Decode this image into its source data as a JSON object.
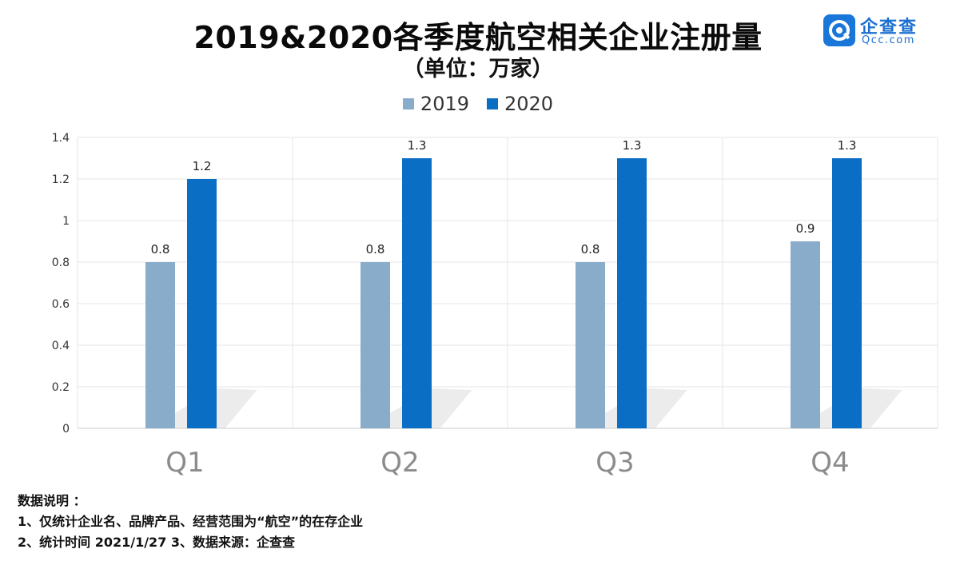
{
  "title": "2019&2020各季度航空相关企业注册量",
  "subtitle": "（单位：万家）",
  "logo": {
    "name_cn": "企查查",
    "name_en": "Qcc.com",
    "icon": "qcc-logo-icon",
    "color": "#1877d8"
  },
  "notes": {
    "heading": "数据说明 ：",
    "line1": "1、仅统计企业名、品牌产品、经营范围为“航空”的在存企业",
    "line2": "2、统计时间 2021/1/27   3、数据来源：企查查"
  },
  "chart_data": {
    "type": "bar",
    "title": "2019&2020各季度航空相关企业注册量",
    "subtitle": "（单位：万家）",
    "categories": [
      "Q1",
      "Q2",
      "Q3",
      "Q4"
    ],
    "series": [
      {
        "name": "2019",
        "values": [
          0.8,
          0.8,
          0.8,
          0.9
        ],
        "color": "#8aaccb"
      },
      {
        "name": "2020",
        "values": [
          1.2,
          1.3,
          1.3,
          1.3
        ],
        "color": "#0a6fc4"
      }
    ],
    "ylim": [
      0,
      1.4
    ],
    "yticks": [
      "0",
      "0.2",
      "0.4",
      "0.6",
      "0.8",
      "1",
      "1.2",
      "1.4"
    ],
    "grid": true,
    "legend": "top-center",
    "data_labels": true
  }
}
